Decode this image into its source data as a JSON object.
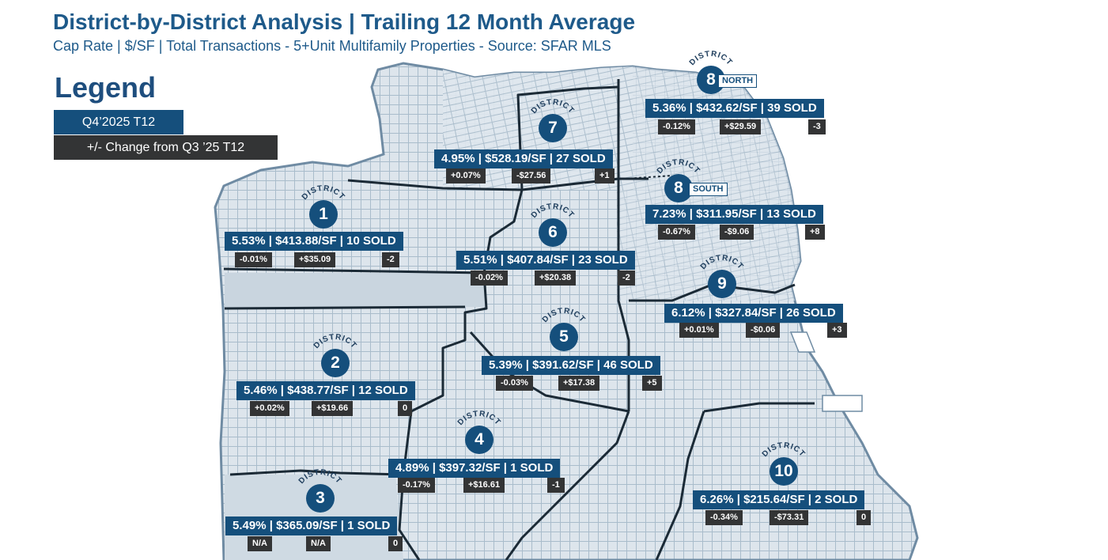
{
  "header": {
    "title": "District-by-District Analysis | Trailing 12 Month Average",
    "subtitle": "Cap Rate | $/SF | Total Transactions - 5+Unit Multifamily Properties - Source: SFAR MLS"
  },
  "legend": {
    "title": "Legend",
    "current_period": "Q4’2025 T12",
    "change_label": "+/- Change from Q3 ’25 T12"
  },
  "colors": {
    "navy": "#154f7c",
    "dark": "#333435",
    "land": "#dde5ec",
    "street": "#9fb3c4",
    "water": "#ffffff"
  },
  "district_word": "DISTRICT",
  "districts": [
    {
      "id": "1",
      "stat": "5.53% | $413.88/SF | 10 SOLD",
      "cap_change": "-0.01%",
      "psf_change": "+$35.09",
      "sold_change": "-2"
    },
    {
      "id": "2",
      "stat": "5.46% | $438.77/SF | 12 SOLD",
      "cap_change": "+0.02%",
      "psf_change": "+$19.66",
      "sold_change": "0"
    },
    {
      "id": "3",
      "stat": "5.49% | $365.09/SF | 1 SOLD",
      "cap_change": "N/A",
      "psf_change": "N/A",
      "sold_change": "0"
    },
    {
      "id": "4",
      "stat": "4.89% | $397.32/SF | 1 SOLD",
      "cap_change": "-0.17%",
      "psf_change": "+$16.61",
      "sold_change": "-1"
    },
    {
      "id": "5",
      "stat": "5.39% | $391.62/SF | 46 SOLD",
      "cap_change": "-0.03%",
      "psf_change": "+$17.38",
      "sold_change": "+5"
    },
    {
      "id": "6",
      "stat": "5.51% | $407.84/SF | 23 SOLD",
      "cap_change": "-0.02%",
      "psf_change": "+$20.38",
      "sold_change": "-2"
    },
    {
      "id": "7",
      "stat": "4.95% | $528.19/SF | 27 SOLD",
      "cap_change": "+0.07%",
      "psf_change": "-$27.56",
      "sold_change": "+1"
    },
    {
      "id": "8",
      "subarea": "NORTH",
      "stat": "5.36% | $432.62/SF | 39 SOLD",
      "cap_change": "-0.12%",
      "psf_change": "+$29.59",
      "sold_change": "-3"
    },
    {
      "id": "8",
      "subarea": "SOUTH",
      "stat": "7.23% | $311.95/SF | 13 SOLD",
      "cap_change": "-0.67%",
      "psf_change": "-$9.06",
      "sold_change": "+8"
    },
    {
      "id": "9",
      "stat": "6.12% | $327.84/SF | 26 SOLD",
      "cap_change": "+0.01%",
      "psf_change": "-$0.06",
      "sold_change": "+3"
    },
    {
      "id": "10",
      "stat": "6.26% | $215.64/SF | 2 SOLD",
      "cap_change": "-0.34%",
      "psf_change": "-$73.31",
      "sold_change": "0"
    }
  ]
}
